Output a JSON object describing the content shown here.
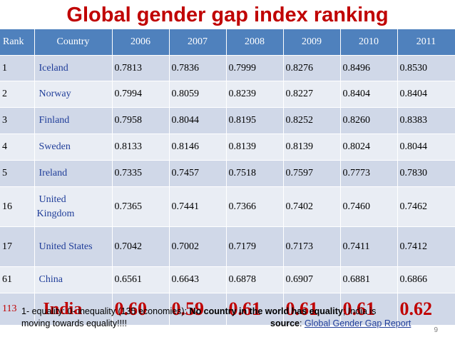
{
  "title": "Global gender gap index ranking",
  "table": {
    "headers": [
      "Rank",
      "Country",
      "2006",
      "2007",
      "2008",
      "2009",
      "2010",
      "2011"
    ],
    "rows": [
      {
        "rank": "1",
        "country": "Iceland",
        "values": [
          "0.7813",
          "0.7836",
          "0.7999",
          "0.8276",
          "0.8496",
          "0.8530"
        ]
      },
      {
        "rank": "2",
        "country": "Norway",
        "values": [
          "0.7994",
          "0.8059",
          "0.8239",
          "0.8227",
          "0.8404",
          "0.8404"
        ]
      },
      {
        "rank": "3",
        "country": "Finland",
        "values": [
          "0.7958",
          "0.8044",
          "0.8195",
          "0.8252",
          "0.8260",
          "0.8383"
        ]
      },
      {
        "rank": "4",
        "country": "Sweden",
        "values": [
          "0.8133",
          "0.8146",
          "0.8139",
          "0.8139",
          "0.8024",
          "0.8044"
        ]
      },
      {
        "rank": "5",
        "country": "Ireland",
        "values": [
          "0.7335",
          "0.7457",
          "0.7518",
          "0.7597",
          "0.7773",
          "0.7830"
        ]
      },
      {
        "rank": "16",
        "country": "United Kingdom",
        "country_line1": "United",
        "country_line2": "Kingdom",
        "values": [
          "0.7365",
          "0.7441",
          "0.7366",
          "0.7402",
          "0.7460",
          "0.7462"
        ]
      },
      {
        "rank": "17",
        "country": "United States",
        "values": [
          "0.7042",
          "0.7002",
          "0.7179",
          "0.7173",
          "0.7411",
          "0.7412"
        ]
      },
      {
        "rank": "61",
        "country": "China",
        "values": [
          "0.6561",
          "0.6643",
          "0.6878",
          "0.6907",
          "0.6881",
          "0.6866"
        ]
      },
      {
        "rank": "113",
        "country": "India",
        "values": [
          "0.60",
          "0.59",
          "0.61",
          "0.61",
          "0.61",
          "0.62"
        ]
      }
    ]
  },
  "note": {
    "part1": "1- equality: 0- inequality (135 economies): ",
    "emphasis": "No country in the world has equality",
    "part2": "; India is",
    "line2": "moving towards equality!!!!",
    "source_label": "source",
    "source_colon": ": ",
    "source_link": "Global Gender Gap Report"
  },
  "page_number": "9",
  "colors": {
    "title": "#c00000",
    "header_bg": "#4f81bd",
    "row_odd": "#d0d8e8",
    "row_even": "#e9edf4",
    "country_text": "#1f3d99",
    "highlight": "#c00000"
  }
}
